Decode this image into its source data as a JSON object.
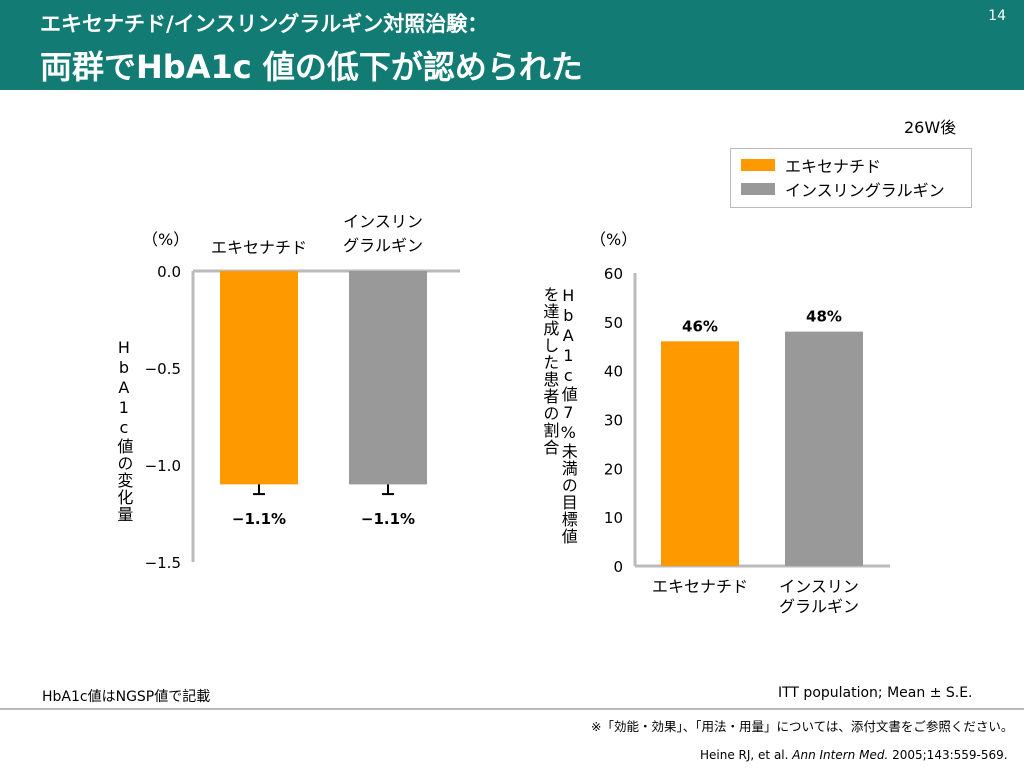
{
  "page": {
    "subtitle": "エキセナチド/インスリングラルギン対照治験：",
    "title": "両群でHbA1c 値の低下が認められた",
    "page_number": "14",
    "timepoint": "26W後",
    "footnote_left": "HbA1c値はNGSP値で記載",
    "population_note": "ITT population; Mean ± S.E.",
    "notice": "※「効能・効果」、「用法・用量」については、添付文書をご参照ください。",
    "citation_prefix": "Heine RJ, et al. ",
    "citation_journal": "Ann Intern Med.",
    "citation_suffix": " 2005;143:559-569."
  },
  "legend": [
    {
      "label": "エキセナチド",
      "color": "#ff9900"
    },
    {
      "label": "インスリングラルギン",
      "color": "#999999"
    }
  ],
  "colors": {
    "header": "#127b73",
    "exenatide": "#ff9900",
    "glargine": "#999999"
  },
  "chart_data": [
    {
      "type": "bar",
      "categories": [
        "エキセナチド",
        "インスリン\nグラルギン"
      ],
      "values": [
        -1.1,
        -1.1
      ],
      "error": [
        0.05,
        0.05
      ],
      "data_labels": [
        "−1.1%",
        "−1.1%"
      ],
      "ylabel": "HbA1c値の変化量",
      "unit": "（%）",
      "ylim": [
        -1.5,
        0
      ],
      "yticks": [
        "0.0",
        "−0.5",
        "−1.0",
        "−1.5"
      ],
      "ytick_values": [
        0,
        -0.5,
        -1.0,
        -1.5
      ],
      "category_labels_position": "top",
      "colors": [
        "#ff9900",
        "#999999"
      ]
    },
    {
      "type": "bar",
      "categories": [
        "エキセナチド",
        "インスリン\nグラルギン"
      ],
      "values": [
        46,
        48
      ],
      "data_labels": [
        "46%",
        "48%"
      ],
      "ylabel": "HbA1c値7%未満の目標値を達成した患者の割合",
      "unit": "（%）",
      "ylim": [
        0,
        60
      ],
      "yticks": [
        "0",
        "10",
        "20",
        "30",
        "40",
        "50",
        "60"
      ],
      "ytick_values": [
        0,
        10,
        20,
        30,
        40,
        50,
        60
      ],
      "category_labels_position": "bottom",
      "colors": [
        "#ff9900",
        "#999999"
      ]
    }
  ]
}
